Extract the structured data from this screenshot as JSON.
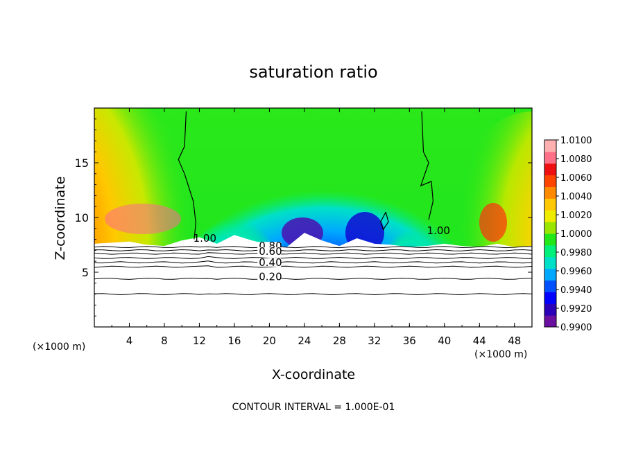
{
  "chart_data": {
    "type": "heatmap",
    "title": "saturation ratio",
    "xlabel": "X-coordinate",
    "ylabel": "Z-coordinate",
    "x_unit_left": "(×1000 m)",
    "x_unit_right": "(×1000 m)",
    "xlim": [
      0,
      50
    ],
    "ylim": [
      0,
      20
    ],
    "x_ticks": [
      {
        "value": 4,
        "label": "4"
      },
      {
        "value": 8,
        "label": "8"
      },
      {
        "value": 12,
        "label": "12"
      },
      {
        "value": 16,
        "label": "16"
      },
      {
        "value": 20,
        "label": "20"
      },
      {
        "value": 24,
        "label": "24"
      },
      {
        "value": 28,
        "label": "28"
      },
      {
        "value": 32,
        "label": "32"
      },
      {
        "value": 36,
        "label": "36"
      },
      {
        "value": 40,
        "label": "40"
      },
      {
        "value": 44,
        "label": "44"
      },
      {
        "value": 48,
        "label": "48"
      }
    ],
    "y_ticks": [
      {
        "value": 5,
        "label": "5"
      },
      {
        "value": 10,
        "label": "10"
      },
      {
        "value": 15,
        "label": "15"
      }
    ],
    "colorbar": {
      "min": 0.99,
      "max": 1.01,
      "labels": [
        "1.0100",
        "1.0080",
        "1.0060",
        "1.0040",
        "1.0020",
        "1.0000",
        "0.9980",
        "0.9960",
        "0.9940",
        "0.9920",
        "0.9900"
      ],
      "colors": [
        "#6a0fa0",
        "#2a00b8",
        "#0000ff",
        "#0050ff",
        "#00a8ff",
        "#00e0c8",
        "#00f07a",
        "#22e81a",
        "#9ae600",
        "#f0ec00",
        "#ffc800",
        "#ff8a00",
        "#ff4400",
        "#ee1010",
        "#ff7088",
        "#ffb0b0"
      ]
    },
    "contour_labels": [
      {
        "text": "1.00",
        "x": 11.3,
        "z": 7.9
      },
      {
        "text": "1.00",
        "x": 38.0,
        "z": 8.6
      },
      {
        "text": "0.80",
        "x": 18.8,
        "z": 7.2
      },
      {
        "text": "0.60",
        "x": 18.8,
        "z": 6.7
      },
      {
        "text": "0.40",
        "x": 18.8,
        "z": 5.7
      },
      {
        "text": "0.20",
        "x": 18.8,
        "z": 4.4
      }
    ],
    "contour_interval_note": "CONTOUR INTERVAL = 1.000E-01",
    "grid": false
  }
}
